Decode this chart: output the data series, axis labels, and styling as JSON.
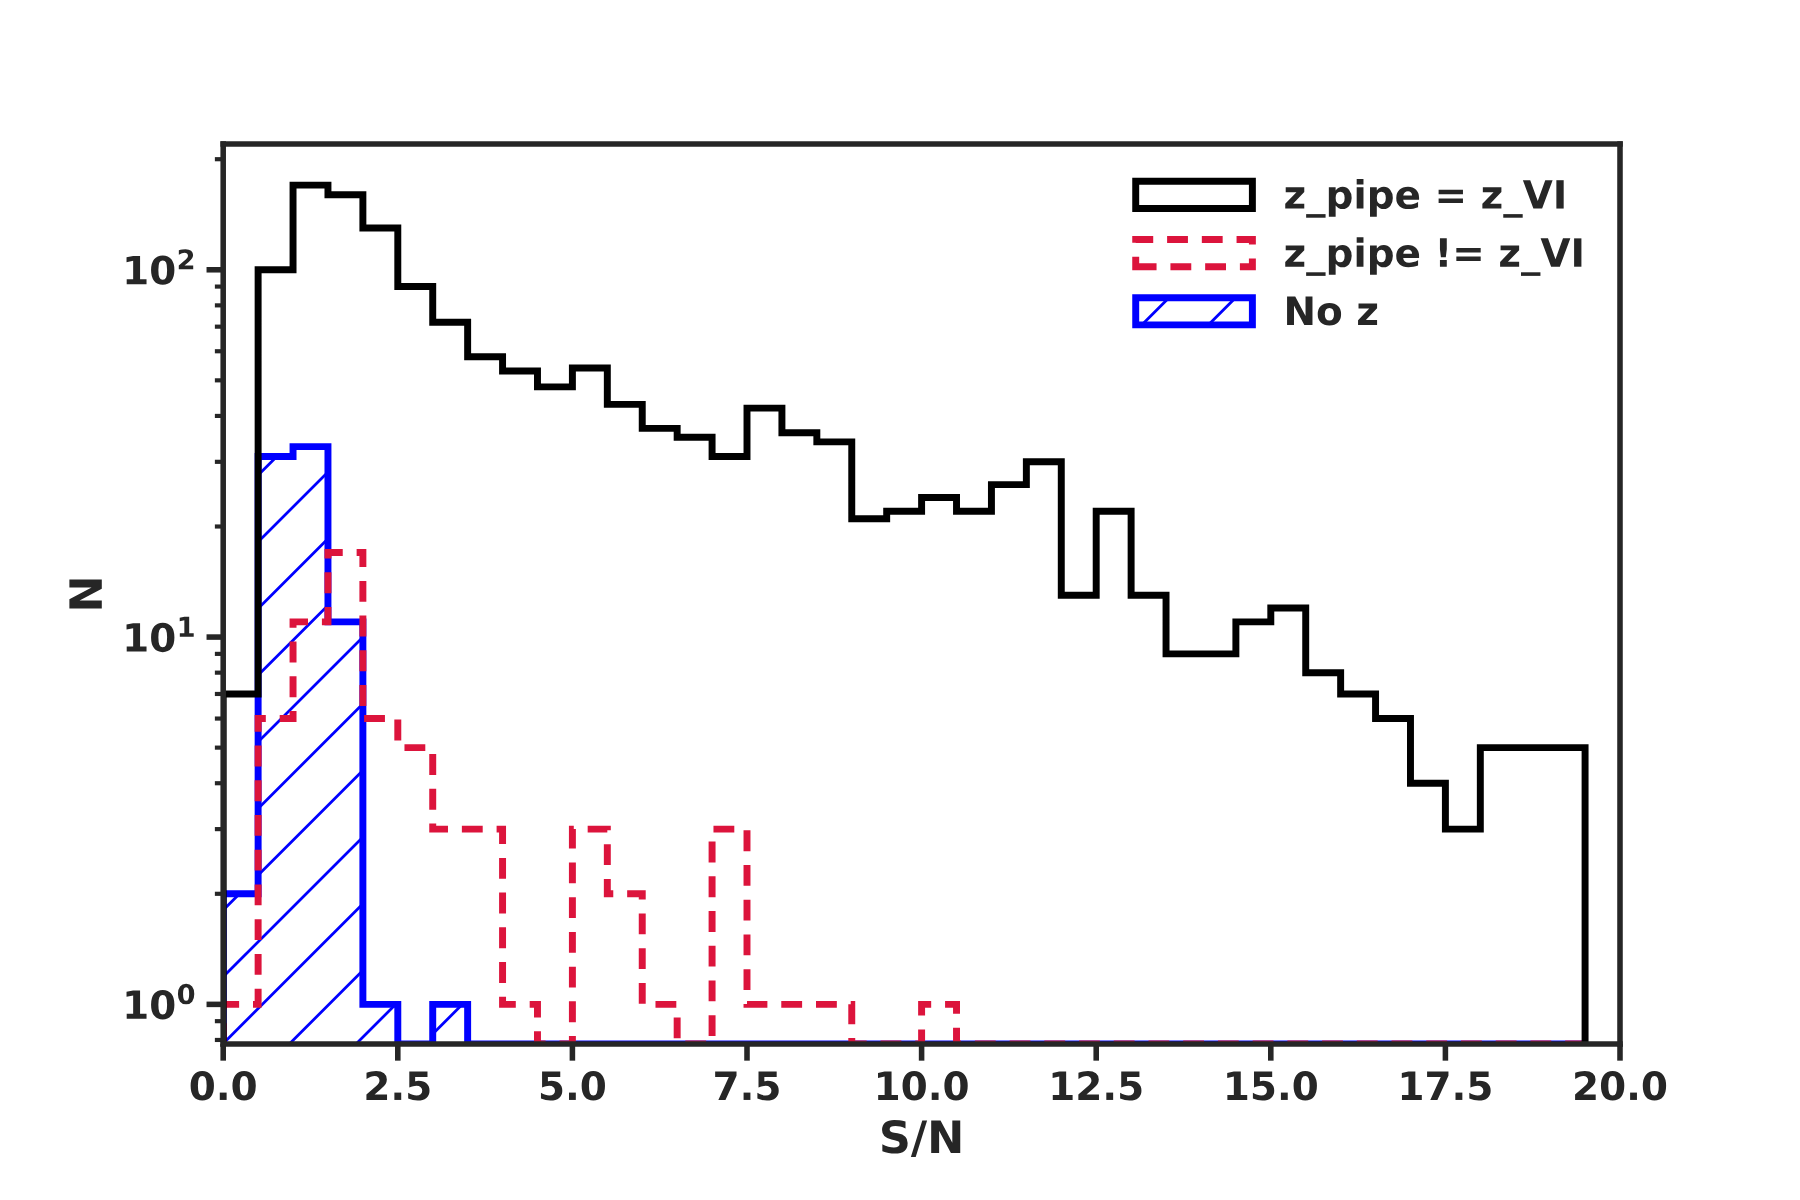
{
  "chart_data": {
    "type": "histogram",
    "xlabel": "S/N",
    "ylabel": "N",
    "log": "y",
    "xlim": [
      0,
      20
    ],
    "ylim": [
      0.78,
      220
    ],
    "xticks": [
      {
        "value": 0,
        "label": "0.0"
      },
      {
        "value": 2.5,
        "label": "2.5"
      },
      {
        "value": 5,
        "label": "5.0"
      },
      {
        "value": 7.5,
        "label": "7.5"
      },
      {
        "value": 10,
        "label": "10.0"
      },
      {
        "value": 12.5,
        "label": "12.5"
      },
      {
        "value": 15,
        "label": "15.0"
      },
      {
        "value": 17.5,
        "label": "17.5"
      },
      {
        "value": 20,
        "label": "20.0"
      }
    ],
    "yticks": [
      {
        "value": 1,
        "label": "10$^{0}$"
      },
      {
        "value": 10,
        "label": "10$^{1}$"
      },
      {
        "value": 100,
        "label": "10$^{2}$"
      }
    ],
    "legend": "top right",
    "grid": false,
    "bins": [
      0,
      0.5,
      1,
      1.5,
      2,
      2.5,
      3,
      3.5,
      4,
      4.5,
      5,
      5.5,
      6,
      6.5,
      7,
      7.5,
      8,
      8.5,
      9,
      9.5,
      10,
      10.5,
      11,
      11.5,
      12,
      12.5,
      13,
      13.5,
      14,
      14.5,
      15,
      15.5,
      16,
      16.5,
      17,
      17.5,
      18,
      18.5,
      19,
      19.5
    ],
    "series": [
      {
        "name": "z_pipe = z_VI",
        "color": "#000000",
        "line_style": "solid",
        "values": [
          7,
          100,
          170,
          160,
          130,
          90,
          72,
          58,
          53,
          48,
          54,
          43,
          37,
          35,
          31,
          42,
          36,
          34,
          21,
          22,
          24,
          22,
          26,
          30,
          13,
          22,
          13,
          9,
          9,
          11,
          12,
          8,
          7,
          6,
          4,
          3,
          5,
          5,
          5
        ]
      },
      {
        "name": "z_pipe != z_VI",
        "color": "#dc143c",
        "line_style": "dashed",
        "values": [
          1,
          6,
          11,
          17,
          6,
          5,
          3,
          3,
          1,
          null,
          3,
          2,
          1,
          null,
          3,
          1,
          1,
          1,
          null,
          null,
          1,
          null,
          null,
          null,
          null,
          null,
          null,
          null,
          null,
          null,
          null,
          null,
          null,
          null,
          null,
          null,
          null,
          null,
          null
        ]
      },
      {
        "name": "No z",
        "color": "#0000ff",
        "line_style": "solid",
        "values": [
          2,
          31,
          33,
          11,
          1,
          null,
          1,
          null,
          null,
          null,
          null,
          null,
          null,
          null,
          null,
          null,
          null,
          null,
          null,
          null,
          null,
          null,
          null,
          null,
          null,
          null,
          null,
          null,
          null,
          null,
          null,
          null,
          null,
          null,
          null,
          null,
          null,
          null,
          null
        ]
      }
    ]
  }
}
